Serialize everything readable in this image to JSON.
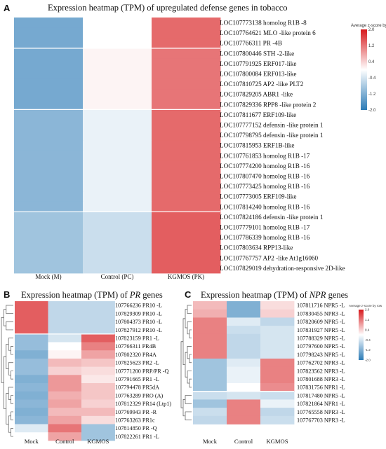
{
  "panels": {
    "A": {
      "letter": "A",
      "title": "Expression heatmap (TPM) of upregulated defense genes in tobacco"
    },
    "B": {
      "letter": "B",
      "title_pre": "Expression heatmap (TPM) of ",
      "title_em": "PR",
      "title_post": " genes"
    },
    "C": {
      "letter": "C",
      "title_pre": "Expression heatmap (TPM) of ",
      "title_em": "NPR",
      "title_post": " genes"
    }
  },
  "legend": {
    "title": "Average z-score by row",
    "ticks": [
      "2.0",
      "1.2",
      "0.4",
      "-0.4",
      "-1.2",
      "-2.0"
    ],
    "colors": {
      "high": "#d7191c",
      "mid": "#ffffff",
      "low": "#2c7bb6"
    }
  },
  "chart_data": [
    {
      "type": "heatmap",
      "title": "Expression heatmap (TPM) of upregulated defense genes in tobacco",
      "legend_title": "Average z-score by row",
      "zlim": [
        -2.0,
        2.0
      ],
      "columns": [
        "Mock (M)",
        "Control (PC)",
        "KGMOS (PK)"
      ],
      "rows": [
        "LOC107773138 homolog R1B -8",
        "LOC107764621 MLO -like protein 6",
        "LOC107766311 PR -4B",
        "LOC107800446 STH -2-like",
        "LOC107791925 ERF017-like",
        "LOC107800084 ERF013-like",
        "LOC107810725 AP2 -like PLT2",
        "LOC107829205 ABR1 -like",
        "LOC107829336 RPP8 -like protein 2",
        "LOC107811677 ERF109-like",
        "LOC107777152 defensin -like protein 1",
        "LOC107798795 defensin -like protein 1",
        "LOC107815953 ERF1B-like",
        "LOC107761853 homolog R1B -17",
        "LOC107774200 homolog R1B -16",
        "LOC107807470 homolog R1B -16",
        "LOC107773425 homolog R1B -16",
        "LOC107773005 ERF109-like",
        "LOC107814240 homolog R1B -16",
        "LOC107824186 defensin -like protein 1",
        "LOC107779101 homolog R1B -17",
        "LOC107786339 homolog R1B -16",
        "LOC107803634 RPP13-like",
        "LOC107767757 AP2 -like At1g16060",
        "LOC107829019 dehydration-responsive 2D-like"
      ],
      "values": [
        [
          -1.3,
          0.0,
          1.3
        ],
        [
          -1.3,
          0.0,
          1.3
        ],
        [
          -1.3,
          0.0,
          1.3
        ],
        [
          -1.3,
          0.1,
          1.2
        ],
        [
          -1.3,
          0.1,
          1.2
        ],
        [
          -1.3,
          0.1,
          1.2
        ],
        [
          -1.3,
          0.1,
          1.2
        ],
        [
          -1.3,
          0.1,
          1.2
        ],
        [
          -1.3,
          0.1,
          1.2
        ],
        [
          -1.1,
          -0.2,
          1.3
        ],
        [
          -1.1,
          -0.2,
          1.3
        ],
        [
          -1.1,
          -0.2,
          1.3
        ],
        [
          -1.1,
          -0.2,
          1.3
        ],
        [
          -1.1,
          -0.2,
          1.3
        ],
        [
          -1.1,
          -0.2,
          1.3
        ],
        [
          -1.1,
          -0.2,
          1.3
        ],
        [
          -1.1,
          -0.2,
          1.3
        ],
        [
          -1.1,
          -0.2,
          1.3
        ],
        [
          -1.1,
          -0.2,
          1.3
        ],
        [
          -0.9,
          -0.5,
          1.4
        ],
        [
          -0.9,
          -0.5,
          1.4
        ],
        [
          -0.9,
          -0.5,
          1.4
        ],
        [
          -0.9,
          -0.5,
          1.4
        ],
        [
          -0.9,
          -0.5,
          1.4
        ],
        [
          -0.9,
          -0.5,
          1.4
        ]
      ]
    },
    {
      "type": "heatmap",
      "title": "Expression heatmap (TPM) of PR genes",
      "zlim": [
        -2.0,
        2.0
      ],
      "columns": [
        "Mock",
        "Control",
        "KGMOS"
      ],
      "rows": [
        "107766236 PR10 -L",
        "107829309 PR10 -L",
        "107804373 PR10 -L",
        "107827912 PR10 -L",
        "107823159 PR1 -L",
        "107766311 PR4B",
        "107802320 PR4A",
        "107825623 PR2 -L",
        "107771200 PRP/PR -Q",
        "107791665 PR1 -L",
        "107794478 PR5dA",
        "107763289 PRO (A)",
        "107812329 PR14 (Ltp1)",
        "107769943 PR -R",
        "107763263 PR1c",
        "107814850 PR -Q",
        "107822261 PR1 -L"
      ],
      "values": [
        [
          1.4,
          -0.6,
          -0.6
        ],
        [
          1.4,
          -0.6,
          -0.6
        ],
        [
          1.4,
          -0.6,
          -0.6
        ],
        [
          1.4,
          -0.6,
          -0.6
        ],
        [
          -1.0,
          -0.4,
          1.4
        ],
        [
          -1.0,
          0.0,
          1.1
        ],
        [
          -1.2,
          0.1,
          0.8
        ],
        [
          -1.0,
          0.6,
          0.5
        ],
        [
          -1.0,
          0.4,
          0.3
        ],
        [
          -1.2,
          0.9,
          0.2
        ],
        [
          -1.1,
          0.9,
          0.5
        ],
        [
          -1.2,
          0.7,
          0.5
        ],
        [
          -1.1,
          0.8,
          0.4
        ],
        [
          -1.2,
          0.6,
          0.6
        ],
        [
          -1.1,
          0.8,
          0.3
        ],
        [
          -0.3,
          1.2,
          -0.9
        ],
        [
          0.0,
          0.8,
          -0.9
        ]
      ]
    },
    {
      "type": "heatmap",
      "title": "Expression heatmap (TPM) of NPR genes",
      "legend_title": "Average z-score by row",
      "zlim": [
        -2.0,
        2.0
      ],
      "columns": [
        "Mock",
        "Control",
        "KGMOS"
      ],
      "rows": [
        "107811716 NPR5 -L",
        "107830455 NPR3 -L",
        "107820609 NPR5 -L",
        "107831927 NPR5 -L",
        "107788329 NPR5 -L",
        "107797600 NPR5 -L",
        "107798243 NPR5 -L",
        "107762702 NPR3 -L",
        "107823562 NPR3 -L",
        "107801688 NPR3 -L",
        "107831756 NPR1 -L",
        "107817480 NPR5 -L",
        "107821864 NPR1 -L",
        "107765558 NPR3 -L",
        "107767703 NPR3 -L"
      ],
      "values": [
        [
          0.6,
          -1.2,
          0.3
        ],
        [
          0.7,
          -1.2,
          0.4
        ],
        [
          1.1,
          -0.3,
          -0.6
        ],
        [
          1.1,
          -0.5,
          -0.4
        ],
        [
          1.1,
          -0.6,
          -0.4
        ],
        [
          1.1,
          -0.6,
          -0.4
        ],
        [
          1.1,
          -0.6,
          -0.4
        ],
        [
          -0.9,
          -0.3,
          1.1
        ],
        [
          -0.9,
          -0.2,
          1.1
        ],
        [
          -0.9,
          -0.2,
          1.1
        ],
        [
          -0.9,
          0.0,
          1.0
        ],
        [
          -0.5,
          -0.4,
          -0.5
        ],
        [
          -0.9,
          1.1,
          -0.2
        ],
        [
          -0.5,
          1.1,
          -0.6
        ],
        [
          -0.6,
          1.1,
          -0.5
        ]
      ]
    }
  ]
}
